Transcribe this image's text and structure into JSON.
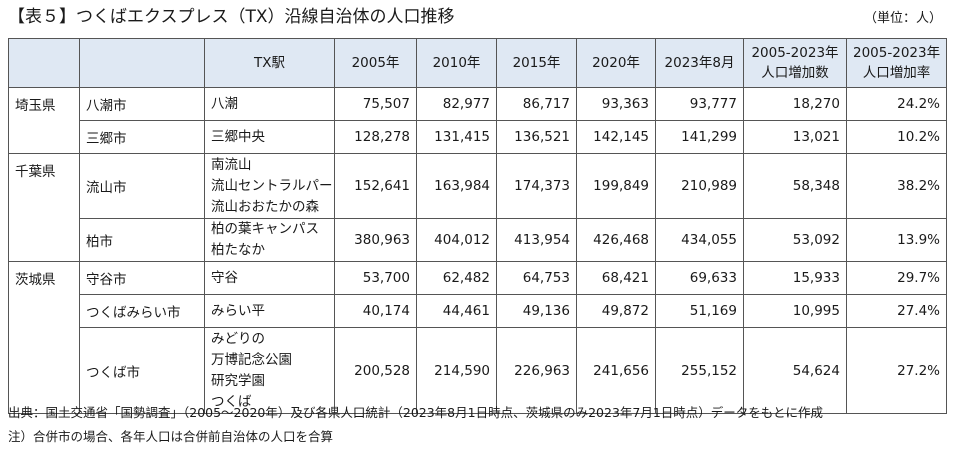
{
  "title": "【表５】つくばエクスプレス（TX）沿線自治体の人口推移",
  "unit": "（単位：人）",
  "headers": {
    "station": "TX駅",
    "y2005": "2005年",
    "y2010": "2010年",
    "y2015": "2015年",
    "y2020": "2020年",
    "y2023": "2023年8月",
    "increase_line1": "2005-2023年",
    "increase_line2": "人口増加数",
    "rate_line1": "2005-2023年",
    "rate_line2": "人口増加率"
  },
  "rows": [
    {
      "pref": "埼玉県",
      "city": "八潮市",
      "stations": [
        "八潮"
      ],
      "y2005": "75,507",
      "y2010": "82,977",
      "y2015": "86,717",
      "y2020": "93,363",
      "y2023": "93,777",
      "increase": "18,270",
      "rate": "24.2%"
    },
    {
      "pref": "",
      "city": "三郷市",
      "stations": [
        "三郷中央"
      ],
      "y2005": "128,278",
      "y2010": "131,415",
      "y2015": "136,521",
      "y2020": "142,145",
      "y2023": "141,299",
      "increase": "13,021",
      "rate": "10.2%"
    },
    {
      "pref": "千葉県",
      "city": "流山市",
      "stations": [
        "南流山",
        "流山セントラルパーク",
        "流山おおたかの森"
      ],
      "y2005": "152,641",
      "y2010": "163,984",
      "y2015": "174,373",
      "y2020": "199,849",
      "y2023": "210,989",
      "increase": "58,348",
      "rate": "38.2%"
    },
    {
      "pref": "",
      "city": "柏市",
      "stations": [
        "柏の葉キャンパス",
        "柏たなか"
      ],
      "y2005": "380,963",
      "y2010": "404,012",
      "y2015": "413,954",
      "y2020": "426,468",
      "y2023": "434,055",
      "increase": "53,092",
      "rate": "13.9%"
    },
    {
      "pref": "茨城県",
      "city": "守谷市",
      "stations": [
        "守谷"
      ],
      "y2005": "53,700",
      "y2010": "62,482",
      "y2015": "64,753",
      "y2020": "68,421",
      "y2023": "69,633",
      "increase": "15,933",
      "rate": "29.7%"
    },
    {
      "pref": "",
      "city": "つくばみらい市",
      "stations": [
        "みらい平"
      ],
      "y2005": "40,174",
      "y2010": "44,461",
      "y2015": "49,136",
      "y2020": "49,872",
      "y2023": "51,169",
      "increase": "10,995",
      "rate": "27.4%"
    },
    {
      "pref": "",
      "city": "つくば市",
      "stations": [
        "みどりの",
        "万博記念公園",
        "研究学園",
        "つくば"
      ],
      "y2005": "200,528",
      "y2010": "214,590",
      "y2015": "226,963",
      "y2020": "241,656",
      "y2023": "255,152",
      "increase": "54,624",
      "rate": "27.2%"
    }
  ],
  "footnotes": {
    "source": "出典：国土交通省「国勢調査」（2005～2020年）及び各県人口統計（2023年8月1日時点、茨城県のみ2023年7月1日時点）データをもとに作成",
    "note": "注）合併市の場合、各年人口は合併前自治体の人口を合算"
  }
}
